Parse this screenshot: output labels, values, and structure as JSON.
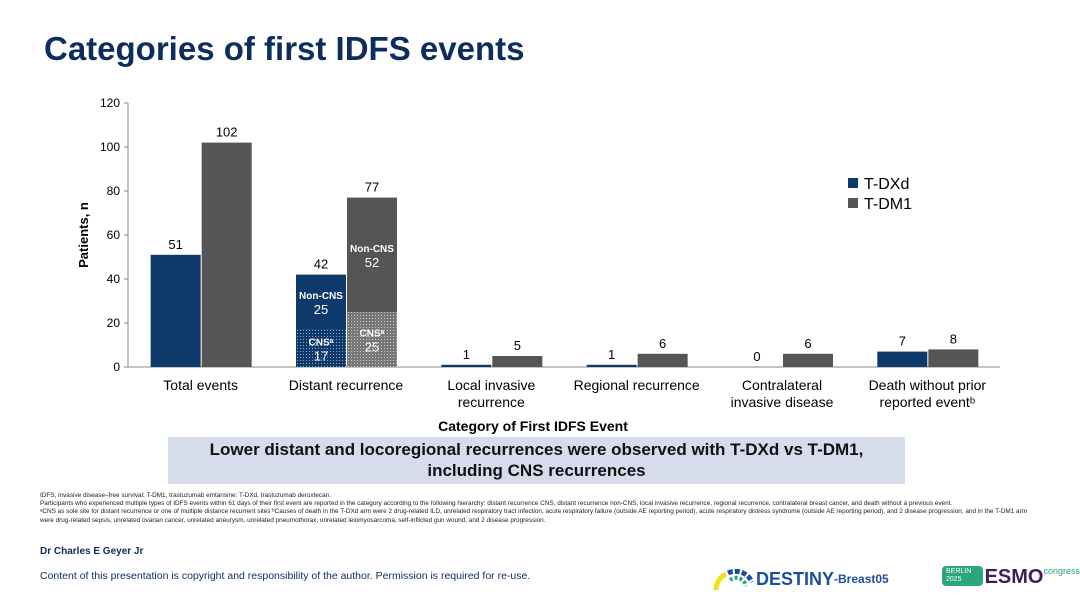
{
  "title": "Categories of first IDFS events",
  "chart_data": {
    "type": "bar",
    "xlabel": "Category of First IDFS Event",
    "ylabel": "Patients, n",
    "ylim": [
      0,
      120
    ],
    "yticks": [
      0,
      20,
      40,
      60,
      80,
      100,
      120
    ],
    "categories": [
      "Total events",
      "Distant recurrence",
      "Local invasive recurrence",
      "Regional recurrence",
      "Contralateral invasive disease",
      "Death without prior reported eventᵇ"
    ],
    "category_lines": [
      [
        "Total events"
      ],
      [
        "Distant recurrence"
      ],
      [
        "Local invasive",
        "recurrence"
      ],
      [
        "Regional recurrence"
      ],
      [
        "Contralateral",
        "invasive disease"
      ],
      [
        "Death without prior",
        "reported eventᵇ"
      ]
    ],
    "series": [
      {
        "name": "T-DXd",
        "color": "#0d3a6b",
        "values": [
          51,
          42,
          1,
          1,
          0,
          7
        ]
      },
      {
        "name": "T-DM1",
        "color": "#555555",
        "values": [
          102,
          77,
          5,
          6,
          6,
          8
        ]
      }
    ],
    "stacks": {
      "category": "Distant recurrence",
      "T-DXd": [
        {
          "label": "CNSᵃ",
          "value": 17
        },
        {
          "label": "Non-CNS",
          "value": 25
        }
      ],
      "T-DM1": [
        {
          "label": "CNSᵃ",
          "value": 25
        },
        {
          "label": "Non-CNS",
          "value": 52
        }
      ]
    },
    "legend": "right"
  },
  "banner": {
    "line1": "Lower distant and locoregional recurrences were observed with T-DXd vs T-DM1,",
    "line2": "including CNS recurrences"
  },
  "footnotes": [
    "IDFS, invasive disease–free survival; T-DM1, trastuzumab emtansine; T-DXd, trastuzumab deruxtecan.",
    "Participants who experienced multiple types of IDFS events within 61 days of their first event are reported in the category according to the following hierarchy: distant recurrence CNS, distant recurrence non-CNS, local invasive recurrence, regional recurrence, contralateral breast cancer, and death without a previous event.",
    "ᵃCNS as sole site for distant recurrence or one of multiple distance recurrent sites ᵇCauses of death in the T-DXd arm were 2 drug-related ILD, unrelated respiratory tract infection, acute respiratory failure (outside AE reporting period), acute respiratory distress syndrome (outside AE reporting period), and 2 disease progression, and in the T-DM1 arm were drug-related sepsis, unrelated ovarian cancer, unrelated aneurysm, unrelated pneumothorax, unrelated leiomyosarcoma, self-inflicted gun wound, and 2 disease progression."
  ],
  "author": "Dr Charles E Geyer Jr",
  "copyright": "Content of this presentation is copyright and responsibility of the author. Permission is required for re-use.",
  "logos": {
    "destiny_main": "DESTINY",
    "destiny_sub": "-Breast05",
    "esmo_city": "BERLIN 2025",
    "esmo": "ESMO",
    "esmo_congress": "congress"
  }
}
